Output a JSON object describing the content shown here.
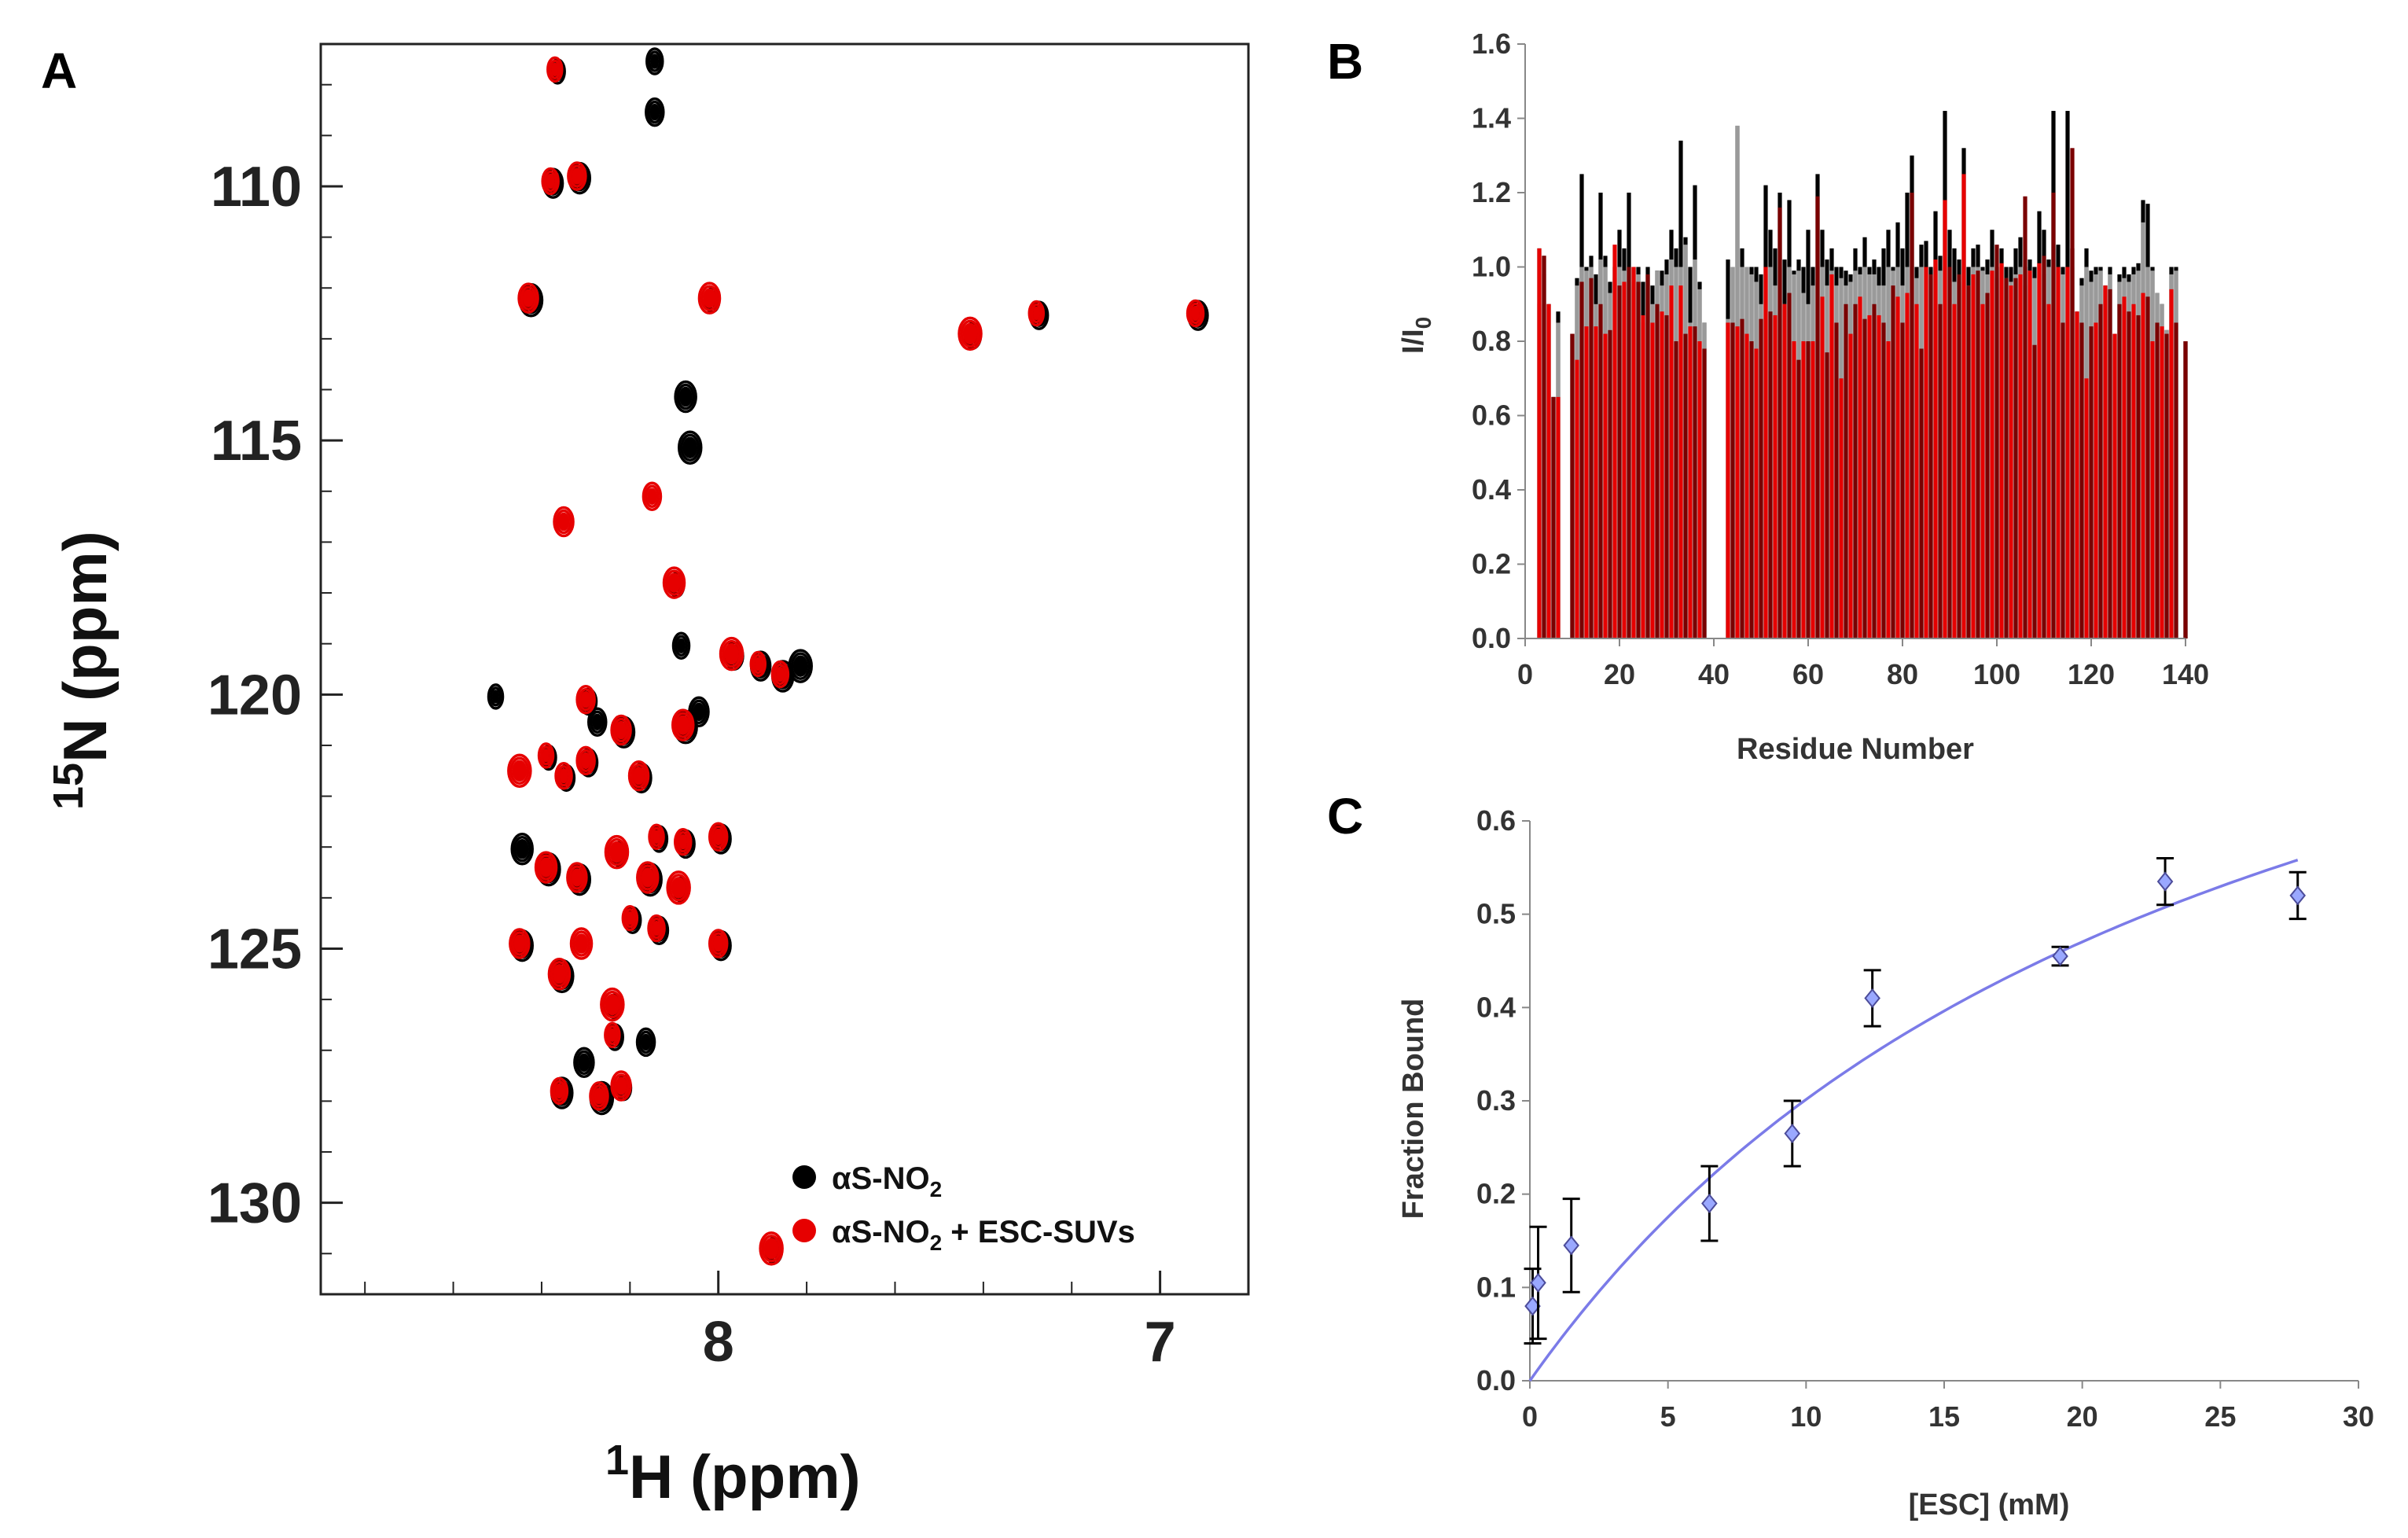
{
  "figure": {
    "colors": {
      "black_series": "#000000",
      "red_series": "#e60000",
      "dark_red": "#7a0000",
      "grey_series": "#9a9a9a",
      "fit_line": "#7b7be8",
      "marker_fill": "#9aa8ff",
      "marker_edge": "#4c4c9a"
    }
  },
  "chart_data": [
    {
      "panel": "A",
      "type": "scatter",
      "title": "",
      "xlabel_base": "H (ppm)",
      "xlabel_sup": "1",
      "ylabel_base": "N (ppm)",
      "ylabel_sup": "15",
      "xlim": [
        8.9,
        6.8
      ],
      "ylim": [
        131.8,
        107.2
      ],
      "x_ticks": [
        {
          "value": 8,
          "label": "8"
        },
        {
          "value": 7,
          "label": "7"
        }
      ],
      "y_ticks": [
        {
          "value": 110,
          "label": "110"
        },
        {
          "value": 115,
          "label": "115"
        },
        {
          "value": 120,
          "label": "120"
        },
        {
          "value": 125,
          "label": "125"
        },
        {
          "value": 130,
          "label": "130"
        }
      ],
      "legend": {
        "position": "bottom-right",
        "entries": [
          {
            "base": "αS-NO",
            "sub": "2",
            "suffix": "",
            "color": "#000000"
          },
          {
            "base": "αS-NO",
            "sub": "2",
            "suffix": " + ESC-SUVs",
            "color": "#e60000"
          }
        ]
      },
      "series": [
        {
          "name": "αS-NO2",
          "color": "#000000",
          "peaks": [
            [
              8.37,
              107.7
            ],
            [
              8.15,
              107.5
            ],
            [
              8.15,
              108.5
            ],
            [
              8.38,
              109.9
            ],
            [
              8.32,
              109.8
            ],
            [
              8.43,
              112.2
            ],
            [
              8.02,
              112.2
            ],
            [
              7.43,
              112.9
            ],
            [
              7.28,
              112.5
            ],
            [
              6.92,
              112.5
            ],
            [
              8.08,
              114.1
            ],
            [
              8.07,
              115.1
            ],
            [
              8.1,
              117.8
            ],
            [
              8.09,
              119.0
            ],
            [
              7.97,
              119.2
            ],
            [
              7.91,
              119.4
            ],
            [
              7.86,
              119.6
            ],
            [
              7.82,
              119.4
            ],
            [
              8.51,
              120.0
            ],
            [
              8.3,
              120.1
            ],
            [
              8.28,
              120.5
            ],
            [
              8.05,
              120.3
            ],
            [
              8.22,
              120.7
            ],
            [
              8.08,
              120.6
            ],
            [
              8.39,
              121.2
            ],
            [
              8.35,
              121.6
            ],
            [
              8.3,
              121.3
            ],
            [
              8.18,
              121.6
            ],
            [
              8.45,
              123.0
            ],
            [
              8.39,
              123.4
            ],
            [
              8.23,
              123.1
            ],
            [
              8.14,
              122.8
            ],
            [
              8.08,
              122.9
            ],
            [
              8.0,
              122.8
            ],
            [
              8.32,
              123.6
            ],
            [
              8.16,
              123.6
            ],
            [
              8.09,
              123.8
            ],
            [
              8.2,
              124.4
            ],
            [
              8.14,
              124.6
            ],
            [
              8.0,
              124.9
            ],
            [
              8.45,
              124.9
            ],
            [
              8.36,
              125.5
            ],
            [
              8.24,
              126.1
            ],
            [
              8.24,
              126.7
            ],
            [
              8.17,
              126.8
            ],
            [
              8.31,
              127.2
            ],
            [
              8.36,
              127.8
            ],
            [
              8.27,
              127.9
            ],
            [
              8.22,
              127.7
            ],
            [
              7.88,
              130.9
            ]
          ]
        },
        {
          "name": "αS-NO2 + ESC-SUVs",
          "color": "#e60000",
          "peaks": [
            [
              8.37,
              107.7
            ],
            [
              8.38,
              109.9
            ],
            [
              8.32,
              109.8
            ],
            [
              8.43,
              112.2
            ],
            [
              8.02,
              112.2
            ],
            [
              7.43,
              112.9
            ],
            [
              7.28,
              112.5
            ],
            [
              6.92,
              112.5
            ],
            [
              8.15,
              116.1
            ],
            [
              8.35,
              116.6
            ],
            [
              8.1,
              117.8
            ],
            [
              7.97,
              119.2
            ],
            [
              7.91,
              119.4
            ],
            [
              7.86,
              119.6
            ],
            [
              8.3,
              120.1
            ],
            [
              8.22,
              120.7
            ],
            [
              8.08,
              120.6
            ],
            [
              8.45,
              121.5
            ],
            [
              8.39,
              121.2
            ],
            [
              8.35,
              121.6
            ],
            [
              8.3,
              121.3
            ],
            [
              8.18,
              121.6
            ],
            [
              8.39,
              123.4
            ],
            [
              8.23,
              123.1
            ],
            [
              8.14,
              122.8
            ],
            [
              8.08,
              122.9
            ],
            [
              8.0,
              122.8
            ],
            [
              8.32,
              123.6
            ],
            [
              8.16,
              123.6
            ],
            [
              8.09,
              123.8
            ],
            [
              8.2,
              124.4
            ],
            [
              8.14,
              124.6
            ],
            [
              8.0,
              124.9
            ],
            [
              8.45,
              124.9
            ],
            [
              8.36,
              125.5
            ],
            [
              8.24,
              126.1
            ],
            [
              8.24,
              126.7
            ],
            [
              8.36,
              127.8
            ],
            [
              8.27,
              127.9
            ],
            [
              8.22,
              127.7
            ],
            [
              8.31,
              124.9
            ],
            [
              7.88,
              130.9
            ]
          ]
        }
      ]
    },
    {
      "panel": "B",
      "type": "bar",
      "title": "",
      "xlabel": "Residue Number",
      "ylabel_base": "I/I",
      "ylabel_sub": "0",
      "xlim": [
        0,
        140
      ],
      "ylim": [
        0,
        1.6
      ],
      "x_ticks": [
        {
          "value": 0,
          "label": "0"
        },
        {
          "value": 20,
          "label": "20"
        },
        {
          "value": 40,
          "label": "40"
        },
        {
          "value": 60,
          "label": "60"
        },
        {
          "value": 80,
          "label": "80"
        },
        {
          "value": 100,
          "label": "100"
        },
        {
          "value": 120,
          "label": "120"
        },
        {
          "value": 140,
          "label": "140"
        }
      ],
      "y_ticks": [
        {
          "value": 0,
          "label": "0.0"
        },
        {
          "value": 0.2,
          "label": "0.2"
        },
        {
          "value": 0.4,
          "label": "0.4"
        },
        {
          "value": 0.6,
          "label": "0.6"
        },
        {
          "value": 0.8,
          "label": "0.8"
        },
        {
          "value": 1.0,
          "label": "1.0"
        },
        {
          "value": 1.2,
          "label": "1.2"
        },
        {
          "value": 1.4,
          "label": "1.4"
        },
        {
          "value": 1.6,
          "label": "1.6"
        }
      ],
      "residues_from": 1,
      "series": [
        {
          "name": "black",
          "color": "#000000",
          "values": [
            0,
            0,
            1.05,
            1.03,
            0.9,
            0.65,
            0.88,
            0,
            0,
            0.82,
            0.97,
            1.25,
            1.0,
            1.03,
            0.98,
            1.2,
            1.03,
            0.96,
            1.0,
            1.1,
            1.05,
            1.2,
            1.0,
            1.0,
            0.96,
            1.0,
            0.95,
            0.99,
            0.99,
            1.02,
            1.1,
            1.05,
            1.34,
            1.08,
            1.0,
            1.22,
            0.96,
            0.85,
            0,
            0,
            0,
            0,
            1.02,
            1.0,
            1.38,
            1.05,
            1.0,
            1.0,
            1.0,
            0.98,
            1.22,
            1.1,
            1.05,
            1.2,
            1.02,
            1.18,
            0.99,
            1.02,
            1.0,
            1.1,
            1.0,
            1.25,
            1.1,
            1.02,
            1.05,
            1.0,
            1.0,
            0.99,
            0.98,
            1.05,
            1.0,
            1.08,
            1.0,
            1.02,
            1.0,
            1.05,
            1.1,
            1.0,
            1.12,
            1.05,
            1.2,
            1.3,
            1.0,
            1.06,
            1.07,
            1.0,
            1.15,
            1.03,
            1.42,
            1.1,
            1.05,
            1.02,
            1.32,
            1.0,
            1.05,
            1.06,
            1.0,
            1.02,
            1.1,
            1.0,
            1.05,
            1.0,
            1.0,
            1.05,
            1.08,
            1.0,
            1.02,
            1.0,
            1.15,
            1.1,
            1.02,
            1.42,
            1.06,
            1.0,
            1.42,
            1.05,
            0.88,
            0.97,
            1.05,
            0.99,
            1.0,
            1.0,
            0.95,
            1.0,
            0.82,
            0.98,
            1.0,
            0.98,
            1.0,
            1.01,
            1.18,
            1.17,
            1.0,
            0.93,
            0.9,
            0.83,
            1.0,
            1.0,
            0.0,
            0.8
          ]
        },
        {
          "name": "grey",
          "color": "#9a9a9a",
          "values": [
            0,
            0,
            0.9,
            0.98,
            0.9,
            0.65,
            0.85,
            0,
            0,
            0.82,
            0.95,
            1.0,
            0.99,
            1.0,
            0.9,
            1.02,
            1.0,
            0.93,
            0.97,
            1.0,
            0.99,
            1.0,
            0.96,
            0.98,
            0.85,
            0.98,
            0.9,
            0.99,
            0.95,
            0.98,
            1.02,
            1.0,
            1.0,
            1.06,
            0.85,
            1.02,
            0.94,
            0.85,
            0,
            0,
            0,
            0,
            0.86,
            1.0,
            1.38,
            1.0,
            1.0,
            0.98,
            0.96,
            0.9,
            0.98,
            1.0,
            0.95,
            1.0,
            0.9,
            1.0,
            0.98,
            0.99,
            0.93,
            0.9,
            0.95,
            1.0,
            1.0,
            0.95,
            0.99,
            0.95,
            0.97,
            0.95,
            0.96,
            0.99,
            0.98,
            1.0,
            0.98,
            0.98,
            0.95,
            0.95,
            1.0,
            0.99,
            1.0,
            0.95,
            1.0,
            1.2,
            0.97,
            1.0,
            1.0,
            0.97,
            1.0,
            0.99,
            1.0,
            1.0,
            0.96,
            0.96,
            1.0,
            0.95,
            1.0,
            1.0,
            0.99,
            0.98,
            1.0,
            0.97,
            1.0,
            0.97,
            0.96,
            0.98,
            1.0,
            0.95,
            0.99,
            0.97,
            1.0,
            0.98,
            1.0,
            1.0,
            1.0,
            0.98,
            1.0,
            1.0,
            0.88,
            0.95,
            1.0,
            0.96,
            0.98,
            0.99,
            0.94,
            0.98,
            0.82,
            0.96,
            0.97,
            0.96,
            0.98,
            0.99,
            1.12,
            1.0,
            0.99,
            0.93,
            0.9,
            0.83,
            0.98,
            0.99,
            0.0,
            0.8
          ]
        },
        {
          "name": "red",
          "color": "#e60000",
          "values": [
            0,
            0,
            1.05,
            1.03,
            0.9,
            0.65,
            0.65,
            0,
            0,
            0.82,
            0.75,
            0.96,
            0.84,
            0.97,
            0.84,
            0.9,
            0.82,
            0.83,
            1.06,
            0.95,
            0.96,
            1.0,
            1.0,
            0.96,
            0.87,
            0.98,
            0.85,
            0.9,
            0.88,
            0.87,
            0.95,
            0.8,
            0.95,
            0.82,
            0.84,
            0.84,
            0.8,
            0.78,
            0,
            0,
            0,
            0,
            0.85,
            0.85,
            0.84,
            0.86,
            0.82,
            0.8,
            0.78,
            0.86,
            1.0,
            0.88,
            0.87,
            1.16,
            0.9,
            0.93,
            0.8,
            0.75,
            0.8,
            0.8,
            0.8,
            1.19,
            0.92,
            0.77,
            0.98,
            0.85,
            0.7,
            0.9,
            0.82,
            0.9,
            0.92,
            0.86,
            0.87,
            0.9,
            0.87,
            0.85,
            0.8,
            0.95,
            0.92,
            0.85,
            0.93,
            1.2,
            0.9,
            0.78,
            1.0,
            0.98,
            1.02,
            0.9,
            1.18,
            1.0,
            0.9,
            0.98,
            1.25,
            0.95,
            0.98,
            0.99,
            0.9,
            0.93,
            0.99,
            1.06,
            1.01,
            0.97,
            0.95,
            0.97,
            0.98,
            1.19,
            0.99,
            0.79,
            1.01,
            1.03,
            0.9,
            1.2,
            1.0,
            0.85,
            1.0,
            1.32,
            0.88,
            0.85,
            0.7,
            0.84,
            0.85,
            0.9,
            0.95,
            0.94,
            0.82,
            0.9,
            0.92,
            0.88,
            0.9,
            0.87,
            0.93,
            0.92,
            0.8,
            0.85,
            0.84,
            0.82,
            0.94,
            0.85,
            0.0,
            0.8
          ]
        }
      ]
    },
    {
      "panel": "C",
      "type": "scatter",
      "title": "",
      "xlabel": "[ESC] (mM)",
      "ylabel": "Fraction Bound",
      "xlim": [
        0,
        30
      ],
      "ylim": [
        0,
        0.6
      ],
      "x_ticks": [
        {
          "value": 0,
          "label": "0"
        },
        {
          "value": 5,
          "label": "5"
        },
        {
          "value": 10,
          "label": "10"
        },
        {
          "value": 15,
          "label": "15"
        },
        {
          "value": 20,
          "label": "20"
        },
        {
          "value": 25,
          "label": "25"
        },
        {
          "value": 30,
          "label": "30"
        }
      ],
      "y_ticks": [
        {
          "value": 0,
          "label": "0.0"
        },
        {
          "value": 0.1,
          "label": "0.1"
        },
        {
          "value": 0.2,
          "label": "0.2"
        },
        {
          "value": 0.3,
          "label": "0.3"
        },
        {
          "value": 0.4,
          "label": "0.4"
        },
        {
          "value": 0.5,
          "label": "0.5"
        },
        {
          "value": 0.6,
          "label": "0.6"
        }
      ],
      "points": [
        {
          "x": 0.1,
          "y": 0.08,
          "err": 0.04
        },
        {
          "x": 0.3,
          "y": 0.105,
          "err": 0.06
        },
        {
          "x": 1.5,
          "y": 0.145,
          "err": 0.05
        },
        {
          "x": 6.5,
          "y": 0.19,
          "err": 0.04
        },
        {
          "x": 9.5,
          "y": 0.265,
          "err": 0.035
        },
        {
          "x": 12.4,
          "y": 0.41,
          "err": 0.03
        },
        {
          "x": 19.2,
          "y": 0.455,
          "err": 0.01
        },
        {
          "x": 23.0,
          "y": 0.535,
          "err": 0.025
        },
        {
          "x": 27.8,
          "y": 0.52,
          "err": 0.025
        }
      ],
      "fit": {
        "model": "binding-curve",
        "bmax": 1.07,
        "kd": 25.5,
        "x_range": [
          0,
          27.8
        ]
      }
    }
  ]
}
